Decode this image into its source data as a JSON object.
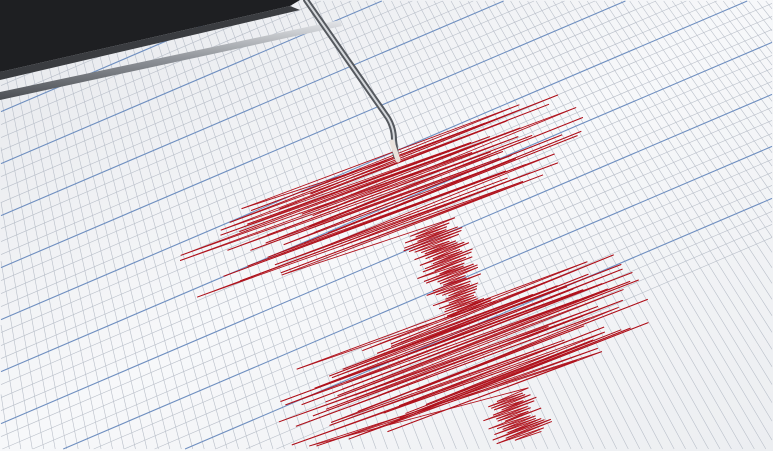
{
  "scene": {
    "subject": "seismograph",
    "colors": {
      "paper": "#f4f5f7",
      "major_grid": "#6f8fc0",
      "minor_grid": "#b9bfc9",
      "trace": "#b0121c",
      "housing": "#1e1f22",
      "metal": "#9a9ea4"
    }
  }
}
